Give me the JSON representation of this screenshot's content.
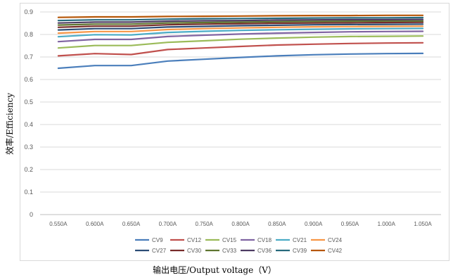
{
  "chart_data": {
    "type": "line",
    "xlabel": "输出电压/Output voltage（V）",
    "ylabel": "效率/Efficiency",
    "ylim": [
      0,
      0.9
    ],
    "yticks": [
      "0",
      "0.1",
      "0.2",
      "0.3",
      "0.4",
      "0.5",
      "0.6",
      "0.7",
      "0.8",
      "0.9"
    ],
    "grid": true,
    "legend_position": "bottom",
    "categories": [
      "0.550A",
      "0.600A",
      "0.650A",
      "0.700A",
      "0.750A",
      "0.800A",
      "0.850A",
      "0.900A",
      "0.950A",
      "1.000A",
      "1.050A"
    ],
    "series": [
      {
        "name": "CV9",
        "color": "#4a7ebb",
        "values": [
          0.65,
          0.662,
          0.662,
          0.682,
          0.69,
          0.698,
          0.705,
          0.71,
          0.713,
          0.715,
          0.716
        ]
      },
      {
        "name": "CV12",
        "color": "#c0504d",
        "values": [
          0.705,
          0.715,
          0.711,
          0.733,
          0.74,
          0.747,
          0.753,
          0.757,
          0.76,
          0.762,
          0.763
        ]
      },
      {
        "name": "CV15",
        "color": "#9bbb59",
        "values": [
          0.74,
          0.751,
          0.751,
          0.765,
          0.772,
          0.779,
          0.784,
          0.788,
          0.791,
          0.792,
          0.793
        ]
      },
      {
        "name": "CV18",
        "color": "#8064a2",
        "values": [
          0.768,
          0.778,
          0.778,
          0.791,
          0.797,
          0.802,
          0.806,
          0.809,
          0.812,
          0.813,
          0.814
        ]
      },
      {
        "name": "CV21",
        "color": "#4bacc6",
        "values": [
          0.79,
          0.799,
          0.798,
          0.809,
          0.814,
          0.818,
          0.821,
          0.823,
          0.825,
          0.826,
          0.827
        ]
      },
      {
        "name": "CV24",
        "color": "#f79646",
        "values": [
          0.806,
          0.813,
          0.813,
          0.822,
          0.826,
          0.829,
          0.832,
          0.834,
          0.835,
          0.836,
          0.837
        ]
      },
      {
        "name": "CV27",
        "color": "#2c4d75",
        "values": [
          0.82,
          0.826,
          0.826,
          0.833,
          0.836,
          0.839,
          0.841,
          0.843,
          0.844,
          0.845,
          0.846
        ]
      },
      {
        "name": "CV30",
        "color": "#772c2a",
        "values": [
          0.832,
          0.837,
          0.837,
          0.843,
          0.846,
          0.848,
          0.85,
          0.851,
          0.852,
          0.853,
          0.854
        ]
      },
      {
        "name": "CV33",
        "color": "#5f7530",
        "values": [
          0.842,
          0.846,
          0.846,
          0.851,
          0.853,
          0.855,
          0.857,
          0.858,
          0.859,
          0.86,
          0.86
        ]
      },
      {
        "name": "CV36",
        "color": "#4d3b62",
        "values": [
          0.851,
          0.855,
          0.855,
          0.859,
          0.861,
          0.862,
          0.864,
          0.865,
          0.866,
          0.866,
          0.867
        ]
      },
      {
        "name": "CV39",
        "color": "#276a7c",
        "values": [
          0.862,
          0.865,
          0.865,
          0.868,
          0.87,
          0.871,
          0.872,
          0.873,
          0.874,
          0.874,
          0.875
        ]
      },
      {
        "name": "CV42",
        "color": "#b65708",
        "values": [
          0.876,
          0.878,
          0.878,
          0.88,
          0.881,
          0.882,
          0.883,
          0.884,
          0.884,
          0.885,
          0.885
        ]
      }
    ]
  }
}
